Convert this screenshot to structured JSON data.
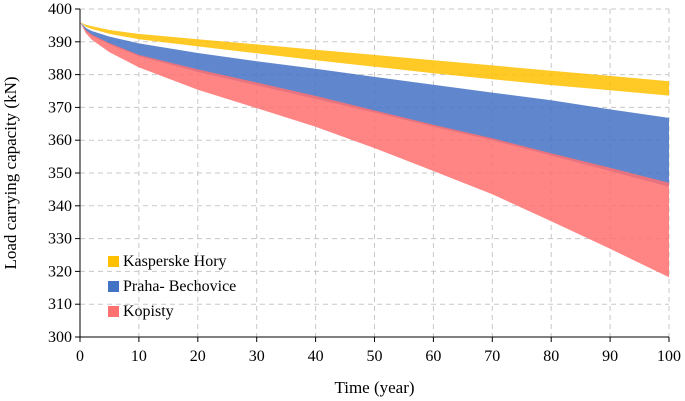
{
  "chart_data": {
    "type": "area",
    "xlabel": "Time (year)",
    "ylabel": "Load carrying capacity  (kN)",
    "xlim": [
      0,
      100
    ],
    "ylim": [
      300,
      400
    ],
    "xticks": [
      0,
      10,
      20,
      30,
      40,
      50,
      60,
      70,
      80,
      90,
      100
    ],
    "yticks": [
      300,
      310,
      320,
      330,
      340,
      350,
      360,
      370,
      380,
      390,
      400
    ],
    "grid": true,
    "legend_position": "bottom-left",
    "x": [
      0,
      1,
      2,
      5,
      10,
      20,
      30,
      40,
      50,
      60,
      70,
      80,
      90,
      100
    ],
    "series": [
      {
        "name": "Kasperske Hory",
        "color": "#FFC000",
        "upper": [
          396,
          395.2,
          394.8,
          393.6,
          392.4,
          390.8,
          389.2,
          387.6,
          386.0,
          384.4,
          382.8,
          381.2,
          379.6,
          378.0
        ],
        "lower": [
          396,
          394.6,
          393.9,
          392.4,
          390.8,
          388.6,
          386.5,
          384.4,
          382.4,
          380.4,
          378.6,
          376.8,
          375.2,
          373.6
        ]
      },
      {
        "name": "Praha- Bechovice",
        "color": "#4472C4",
        "upper": [
          396,
          394.2,
          393.3,
          391.6,
          389.5,
          386.6,
          384.1,
          381.8,
          379.3,
          376.9,
          374.5,
          372.2,
          369.4,
          366.8
        ],
        "lower": [
          396,
          393.2,
          391.8,
          389.2,
          385.6,
          380.8,
          376.7,
          372.6,
          368.4,
          364.1,
          360.0,
          355.3,
          350.6,
          345.8
        ]
      },
      {
        "name": "Kopisty",
        "color": "#FF7070",
        "upper": [
          396,
          393.5,
          392.2,
          389.6,
          386.0,
          381.6,
          377.6,
          373.5,
          369.1,
          364.7,
          360.6,
          356.0,
          351.6,
          347.0
        ],
        "lower": [
          396,
          392.6,
          390.6,
          386.8,
          382.2,
          375.4,
          369.8,
          364.1,
          357.6,
          350.6,
          343.5,
          335.3,
          326.9,
          318.2
        ]
      }
    ]
  }
}
